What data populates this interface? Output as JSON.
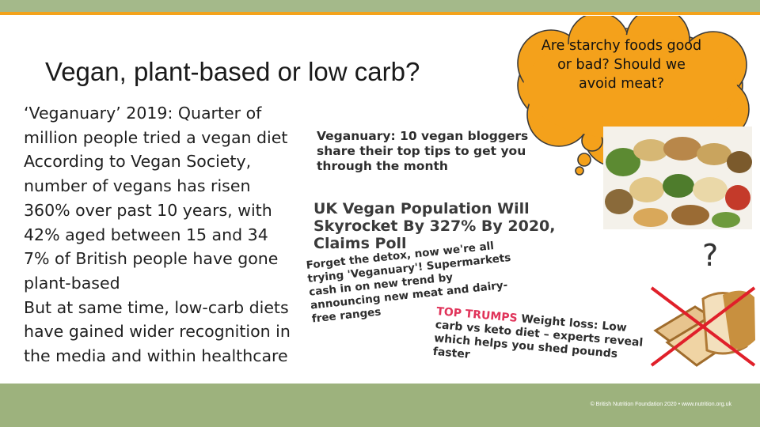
{
  "title": "Vegan, plant-based or low carb?",
  "body_lines": [
    "‘Veganuary’ 2019: Quarter of",
    "million people tried a vegan diet",
    "According to Vegan Society,",
    "number of vegans has risen",
    "360% over past 10 years, with",
    "42% aged between 15 and 34",
    "7% of British people have gone",
    "plant-based",
    "But at same time, low-carb diets",
    "have gained wider recognition in",
    "the media and within healthcare"
  ],
  "headlines": {
    "h1": "Veganuary: 10 vegan bloggers share their top tips to get you through the month",
    "h2": "UK Vegan Population Will Skyrocket By 327% By 2020, Claims Poll",
    "h3": "Forget the detox, now we're all trying 'Veganuary'! Supermarkets cash in on new trend by announcing new meat and dairy-free ranges",
    "h4_tag": "TOP TRUMPS",
    "h4_text": "Weight loss: Low carb vs keto diet – experts reveal which helps you shed pounds faster"
  },
  "thought_bubble": "Are starchy foods good or bad? Should we avoid meat?",
  "question_mark": "?",
  "footer": "© British Nutrition Foundation 2020 • www.nutrition.org.uk",
  "colors": {
    "accent_orange": "#f3a21b",
    "bubble_orange": "#f4a11b",
    "band_green": "#9db27d",
    "cross_red": "#e0202a"
  }
}
